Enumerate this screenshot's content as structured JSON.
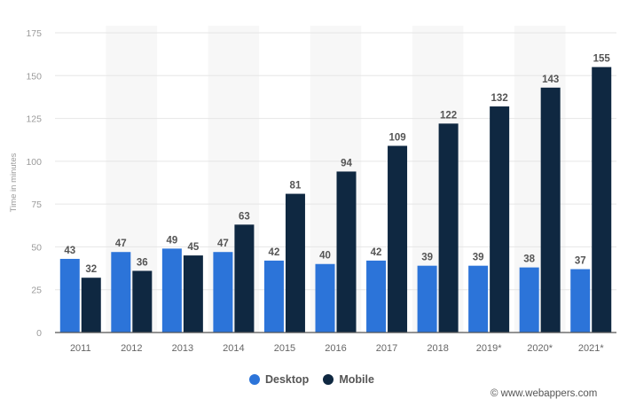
{
  "chart_data": {
    "type": "bar",
    "title": "",
    "xlabel": "",
    "ylabel": "Time in minutes",
    "ylim": [
      0,
      175
    ],
    "yticks": [
      0,
      25,
      50,
      75,
      100,
      125,
      150,
      175
    ],
    "grid": true,
    "legend_position": "bottom",
    "categories": [
      "2011",
      "2012",
      "2013",
      "2014",
      "2015",
      "2016",
      "2017",
      "2018",
      "2019*",
      "2020*",
      "2021*"
    ],
    "series": [
      {
        "name": "Desktop",
        "color": "#2c74d9",
        "values": [
          43,
          47,
          49,
          47,
          42,
          40,
          42,
          39,
          39,
          38,
          37
        ]
      },
      {
        "name": "Mobile",
        "color": "#0f2841",
        "values": [
          32,
          36,
          45,
          63,
          81,
          94,
          109,
          122,
          132,
          143,
          155
        ]
      }
    ]
  },
  "legend": {
    "items": [
      {
        "label": "Desktop",
        "color": "#2c74d9"
      },
      {
        "label": "Mobile",
        "color": "#0f2841"
      }
    ]
  },
  "credit": "© www.webappers.com"
}
